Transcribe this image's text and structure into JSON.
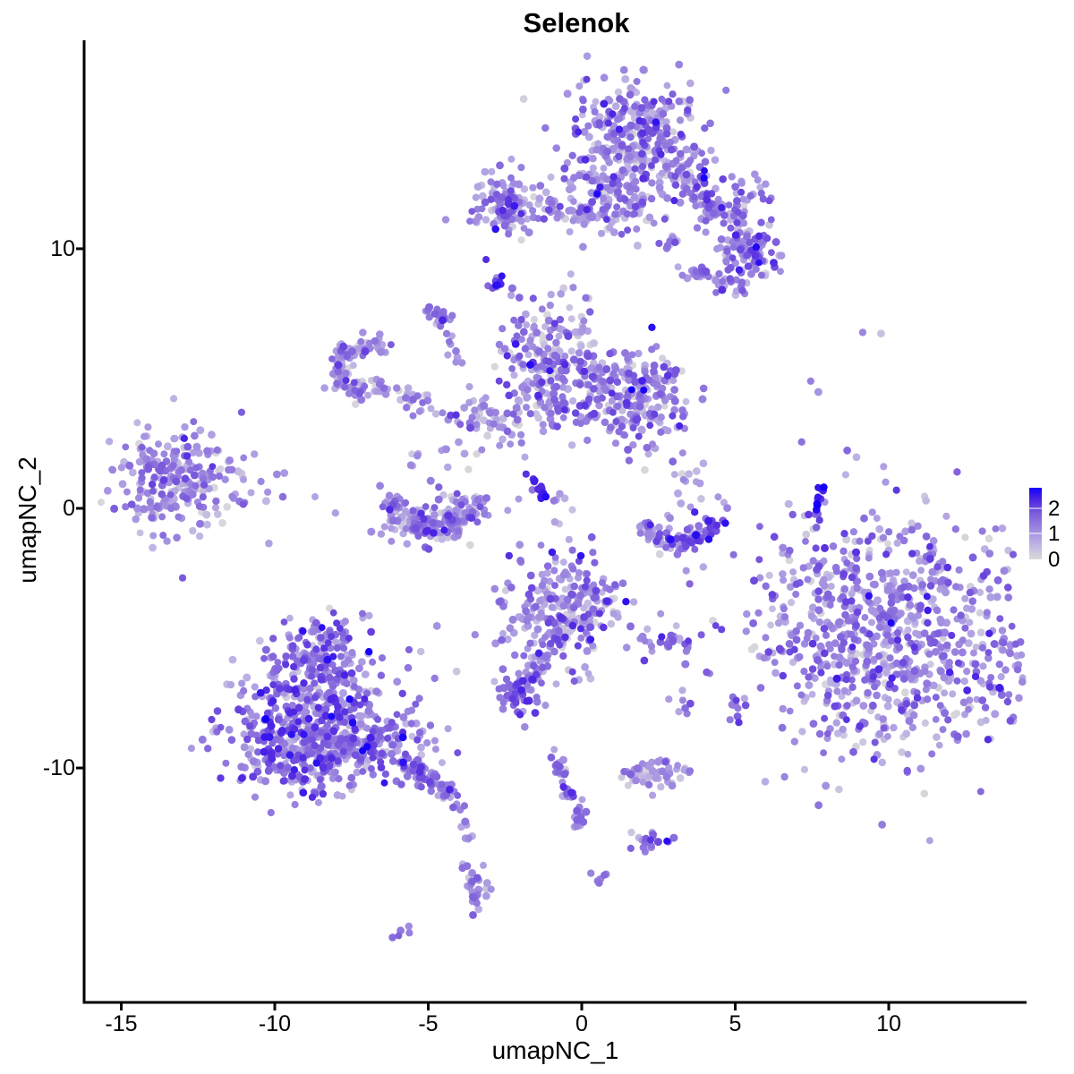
{
  "title": "Selenok",
  "chart_data": {
    "type": "scatter",
    "title": "Selenok",
    "xlabel": "umapNC_1",
    "ylabel": "umapNC_2",
    "x_ticks": [
      -15,
      -10,
      -5,
      0,
      5,
      10
    ],
    "y_ticks": [
      10,
      0,
      -10
    ],
    "xlim": [
      -16.21,
      14.49
    ],
    "ylim": [
      -19.03,
      18.03
    ],
    "grid": false,
    "point_radius_px": 4.2,
    "legend": {
      "position": "right",
      "labels": [
        "2",
        "1",
        "0"
      ],
      "values": [
        2,
        1,
        0
      ],
      "max": 2.8,
      "stops": [
        [
          0,
          "#D9D9D9"
        ],
        [
          0.6,
          "#BEB2E4"
        ],
        [
          1.2,
          "#9D87DF"
        ],
        [
          1.8,
          "#7C5CDC"
        ],
        [
          2.3,
          "#5229E2"
        ],
        [
          2.8,
          "#1400FA"
        ]
      ]
    },
    "clusters": [
      {
        "name": "top-core",
        "t": "blob",
        "cx": 1.6,
        "cy": 14.41,
        "sx": 1.11,
        "sy": 0.97,
        "n": 275,
        "em": 1.05,
        "es": 0.62
      },
      {
        "name": "top-lower",
        "t": "blob",
        "cx": 1.17,
        "cy": 12.17,
        "sx": 0.87,
        "sy": 0.86,
        "n": 150,
        "em": 1.05,
        "es": 0.62
      },
      {
        "name": "top-wing",
        "t": "trail",
        "pts": [
          [
            3.21,
            13.03
          ],
          [
            5.69,
            9.59
          ]
        ],
        "j": 0.38,
        "n": 150,
        "em": 1.1,
        "es": 0.6
      },
      {
        "name": "wing-tip",
        "t": "blob",
        "cx": 5.48,
        "cy": 9.66,
        "sx": 0.41,
        "sy": 0.41,
        "n": 50,
        "em": 1.4,
        "es": 0.6
      },
      {
        "name": "wing-upper",
        "t": "blob",
        "cx": 5.48,
        "cy": 11.83,
        "sx": 0.52,
        "sy": 0.52,
        "n": 28,
        "em": 1.2,
        "es": 0.55
      },
      {
        "name": "wing-band",
        "t": "trail",
        "pts": [
          [
            3.56,
            9.17
          ],
          [
            5.19,
            8.48
          ]
        ],
        "j": 0.26,
        "n": 40,
        "em": 1.2,
        "es": 0.55
      },
      {
        "name": "wing-pair",
        "t": "blob",
        "cx": 2.92,
        "cy": 10.14,
        "sx": 0.2,
        "sy": 0.2,
        "n": 9,
        "em": 1.2,
        "es": 0.4
      },
      {
        "name": "topleft-blob",
        "t": "blob",
        "cx": -2.48,
        "cy": 11.66,
        "sx": 0.64,
        "sy": 0.69,
        "n": 115,
        "em": 1.15,
        "es": 0.6
      },
      {
        "name": "topleft-band",
        "t": "trail",
        "pts": [
          [
            -1.6,
            11.76
          ],
          [
            0.52,
            11.21
          ]
        ],
        "j": 0.2,
        "n": 38,
        "em": 1.1,
        "es": 0.55
      },
      {
        "name": "tiny-diag",
        "t": "blob",
        "cx": -2.74,
        "cy": 8.72,
        "sx": 0.2,
        "sy": 0.32,
        "n": 13,
        "em": 1.7,
        "es": 0.4
      },
      {
        "name": "tiny-upper",
        "t": "blob",
        "cx": -4.64,
        "cy": 7.31,
        "sx": 0.26,
        "sy": 0.31,
        "n": 17,
        "em": 1.2,
        "es": 0.5
      },
      {
        "name": "ring",
        "t": "arc",
        "cx": -7.06,
        "cy": 5.38,
        "r": 0.87,
        "a1": 40,
        "a2": 320,
        "j": 0.2,
        "n": 115,
        "em": 1.0,
        "es": 0.6
      },
      {
        "name": "ring-tail",
        "t": "trail",
        "pts": [
          [
            -5.98,
            4.41
          ],
          [
            -5.01,
            3.72
          ]
        ],
        "j": 0.25,
        "n": 26,
        "em": 0.9,
        "es": 0.55
      },
      {
        "name": "bridge",
        "t": "trail",
        "pts": [
          [
            -4.37,
            3.38
          ],
          [
            -2.92,
            4.0
          ]
        ],
        "j": 0.3,
        "n": 30,
        "em": 0.9,
        "es": 0.6
      },
      {
        "name": "central-left",
        "t": "blob",
        "cx": -0.85,
        "cy": 5.34,
        "sx": 0.93,
        "sy": 1.24,
        "n": 270,
        "em": 1.1,
        "es": 0.6
      },
      {
        "name": "central-right",
        "t": "blob",
        "cx": 1.72,
        "cy": 4.14,
        "sx": 0.79,
        "sy": 0.9,
        "n": 210,
        "em": 1.15,
        "es": 0.6
      },
      {
        "name": "string-up",
        "t": "trail",
        "pts": [
          [
            -4.46,
            7.07
          ],
          [
            -4.02,
            5.55
          ]
        ],
        "j": 0.12,
        "n": 10,
        "em": 1.1,
        "es": 0.5
      },
      {
        "name": "dark-streak",
        "t": "trail",
        "pts": [
          [
            -1.78,
            1.41
          ],
          [
            -1.14,
            0.31
          ]
        ],
        "j": 0.1,
        "n": 13,
        "em": 2.4,
        "es": 0.3
      },
      {
        "name": "sparse-right-of-central",
        "t": "blob",
        "cx": 3.27,
        "cy": 0.97,
        "sx": 0.73,
        "sy": 1.03,
        "n": 26,
        "em": 0.85,
        "es": 0.55
      },
      {
        "name": "sparse-below-central",
        "t": "blob",
        "cx": -2.62,
        "cy": 3.03,
        "sx": 0.58,
        "sy": 0.69,
        "n": 20,
        "em": 0.9,
        "es": 0.55
      },
      {
        "name": "sparse-above-crescent",
        "t": "blob",
        "cx": -4.75,
        "cy": 1.93,
        "sx": 0.73,
        "sy": 0.35,
        "n": 13,
        "em": 0.65,
        "es": 0.5
      },
      {
        "name": "right-crescent",
        "t": "arc",
        "cx": 3.15,
        "cy": -0.14,
        "r": 1.22,
        "a1": 200,
        "a2": 350,
        "j": 0.2,
        "n": 100,
        "em": 1.25,
        "es": 0.6
      },
      {
        "name": "farleft-core",
        "t": "blob",
        "cx": -13.24,
        "cy": 0.97,
        "sx": 1.05,
        "sy": 1.03,
        "n": 235,
        "em": 1.0,
        "es": 0.55
      },
      {
        "name": "farleft-sparse",
        "t": "trail",
        "pts": [
          [
            -11.81,
            1.66
          ],
          [
            -9.85,
            0.41
          ]
        ],
        "j": 0.45,
        "n": 16,
        "em": 0.9,
        "es": 0.5
      },
      {
        "name": "midleft-crescent",
        "t": "arc",
        "cx": -4.87,
        "cy": 0.62,
        "r": 1.4,
        "a1": 185,
        "a2": 355,
        "j": 0.22,
        "n": 125,
        "em": 1.1,
        "es": 0.6
      },
      {
        "name": "midleft-fill",
        "t": "blob",
        "cx": -4.96,
        "cy": -0.34,
        "sx": 1.02,
        "sy": 0.55,
        "n": 85,
        "em": 1.05,
        "es": 0.6
      },
      {
        "name": "botcenter-core",
        "t": "blob",
        "cx": -0.61,
        "cy": -3.9,
        "sx": 0.93,
        "sy": 1.03,
        "n": 265,
        "em": 1.15,
        "es": 0.6
      },
      {
        "name": "botcenter-tail",
        "t": "trail",
        "pts": [
          [
            -1.25,
            -5.31
          ],
          [
            -1.87,
            -7.03
          ]
        ],
        "j": 0.14,
        "n": 24,
        "em": 1.1,
        "es": 0.5
      },
      {
        "name": "dense-knot",
        "t": "blob",
        "cx": -2.1,
        "cy": -7.17,
        "sx": 0.32,
        "sy": 0.45,
        "n": 62,
        "em": 1.45,
        "es": 0.5
      },
      {
        "name": "small-bar",
        "t": "blob",
        "cx": 2.8,
        "cy": -5.1,
        "sx": 0.41,
        "sy": 0.24,
        "n": 28,
        "em": 1.35,
        "es": 0.45
      },
      {
        "name": "right-pair-v",
        "t": "blob",
        "cx": 5.01,
        "cy": -7.62,
        "sx": 0.15,
        "sy": 0.38,
        "n": 11,
        "em": 1.4,
        "es": 0.4
      },
      {
        "name": "mid-pair",
        "t": "blob",
        "cx": 3.29,
        "cy": -7.55,
        "sx": 0.16,
        "sy": 0.21,
        "n": 7,
        "em": 1.2,
        "es": 0.4
      },
      {
        "name": "small-smile",
        "t": "arc",
        "cx": 2.36,
        "cy": -9.55,
        "r": 0.85,
        "a1": 200,
        "a2": 340,
        "j": 0.3,
        "n": 62,
        "em": 0.75,
        "es": 0.5
      },
      {
        "name": "hook-trail",
        "t": "trail",
        "pts": [
          [
            -0.85,
            -9.48
          ],
          [
            -0.64,
            -10.48
          ],
          [
            -0.2,
            -11.55
          ],
          [
            -0.03,
            -12.14
          ],
          [
            -0.29,
            -12.41
          ]
        ],
        "j": 0.12,
        "n": 44,
        "em": 1.3,
        "es": 0.5
      },
      {
        "name": "elbow",
        "t": "blob",
        "cx": 2.27,
        "cy": -12.86,
        "sx": 0.35,
        "sy": 0.28,
        "n": 19,
        "em": 1.5,
        "es": 0.5
      },
      {
        "name": "elbow-gray-dot",
        "t": "blob",
        "cx": 1.63,
        "cy": -12.48,
        "sx": 0.02,
        "sy": 0.02,
        "n": 1,
        "em": 0.3,
        "es": 0
      },
      {
        "name": "tiny-knot",
        "t": "blob",
        "cx": 0.58,
        "cy": -14.21,
        "sx": 0.16,
        "sy": 0.16,
        "n": 7,
        "em": 1.3,
        "es": 0.4
      },
      {
        "name": "botleft-neck",
        "t": "blob",
        "cx": -8.57,
        "cy": -5.62,
        "sx": 0.64,
        "sy": 0.69,
        "n": 125,
        "em": 1.35,
        "es": 0.55
      },
      {
        "name": "botleft-main",
        "t": "blob",
        "cx": -8.69,
        "cy": -8.0,
        "sx": 1.31,
        "sy": 1.38,
        "n": 420,
        "em": 1.35,
        "es": 0.6
      },
      {
        "name": "botleft-left",
        "t": "blob",
        "cx": -9.68,
        "cy": -9.55,
        "sx": 0.82,
        "sy": 0.76,
        "n": 150,
        "em": 1.3,
        "es": 0.6
      },
      {
        "name": "botleft-right",
        "t": "blob",
        "cx": -6.59,
        "cy": -9.14,
        "sx": 0.87,
        "sy": 0.69,
        "n": 135,
        "em": 1.25,
        "es": 0.6
      },
      {
        "name": "botleft-tail",
        "t": "trail",
        "pts": [
          [
            -5.77,
            -9.66
          ],
          [
            -4.08,
            -11.21
          ]
        ],
        "j": 0.2,
        "n": 80,
        "em": 1.3,
        "es": 0.55
      },
      {
        "name": "tail-drip",
        "t": "trail",
        "pts": [
          [
            -3.99,
            -11.45
          ],
          [
            -3.73,
            -12.76
          ]
        ],
        "j": 0.1,
        "n": 10,
        "em": 1.2,
        "es": 0.5
      },
      {
        "name": "drip-blob",
        "t": "blob",
        "cx": -3.44,
        "cy": -14.72,
        "sx": 0.2,
        "sy": 0.69,
        "n": 28,
        "em": 1.25,
        "es": 0.5
      },
      {
        "name": "drip-pair",
        "t": "blob",
        "cx": -5.89,
        "cy": -16.31,
        "sx": 0.2,
        "sy": 0.1,
        "n": 5,
        "em": 1.4,
        "es": 0.3
      },
      {
        "name": "botright-main",
        "t": "blob",
        "cx": 10.2,
        "cy": -4.97,
        "sx": 2.48,
        "sy": 2.14,
        "rot": -25,
        "n": 870,
        "em": 1.1,
        "es": 0.6
      },
      {
        "name": "botright-fringe",
        "t": "blob",
        "cx": 8.16,
        "cy": -2.48,
        "sx": 0.58,
        "sy": 0.41,
        "n": 18,
        "em": 1.2,
        "es": 0.55
      },
      {
        "name": "lone-1",
        "t": "blob",
        "cx": 7.52,
        "cy": -2.03,
        "sx": 0.05,
        "sy": 0.05,
        "n": 1,
        "em": 1.3,
        "es": 0
      },
      {
        "name": "navy-streak",
        "t": "trail",
        "pts": [
          [
            7.78,
            0.9
          ],
          [
            7.64,
            -0.76
          ]
        ],
        "j": 0.08,
        "n": 15,
        "em": 2.2,
        "es": 0.45
      },
      {
        "name": "lone-2",
        "t": "blob",
        "cx": 7.9,
        "cy": -1.97,
        "sx": 0.05,
        "sy": 0.05,
        "n": 1,
        "em": 1.0,
        "es": 0
      },
      {
        "name": "lone-3",
        "t": "blob",
        "cx": 9.18,
        "cy": 6.76,
        "sx": 0.05,
        "sy": 0.05,
        "n": 1,
        "em": 1.2,
        "es": 0
      },
      {
        "name": "lone-4",
        "t": "blob",
        "cx": 9.74,
        "cy": 6.79,
        "sx": 0.05,
        "sy": 0.05,
        "n": 1,
        "em": 0.35,
        "es": 0
      },
      {
        "name": "lone-5",
        "t": "blob",
        "cx": 7.47,
        "cy": 4.9,
        "sx": 0.05,
        "sy": 0.05,
        "n": 1,
        "em": 1.3,
        "es": 0
      },
      {
        "name": "lone-6",
        "t": "blob",
        "cx": 7.7,
        "cy": 4.45,
        "sx": 0.05,
        "sy": 0.05,
        "n": 1,
        "em": 1.0,
        "es": 0
      },
      {
        "name": "center-sparse",
        "t": "blob",
        "cx": -0.73,
        "cy": 0.45,
        "sx": 0.5,
        "sy": 0.6,
        "n": 8,
        "em": 0.7,
        "es": 0.5
      }
    ]
  }
}
